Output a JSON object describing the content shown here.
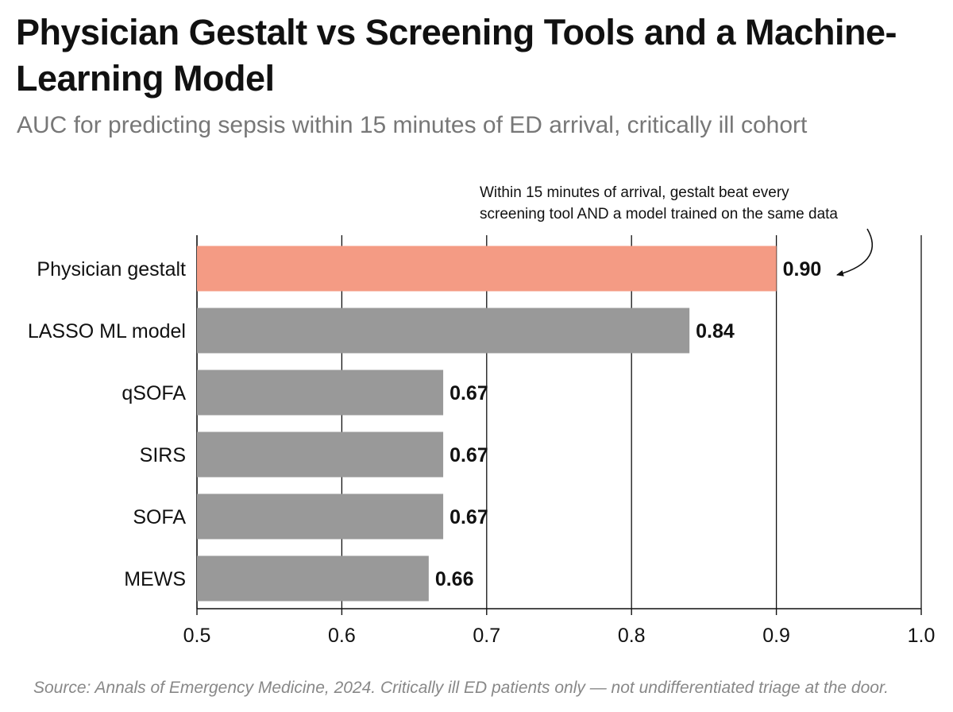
{
  "header": {
    "title": "Physician Gestalt vs Screening Tools and a Machine-Learning Model",
    "subtitle": "AUC for predicting sepsis within 15 minutes of ED arrival, critically ill cohort"
  },
  "footer": {
    "source": "Source: Annals of Emergency Medicine, 2024. Critically ill ED patients only — not undifferentiated triage at the door."
  },
  "chart_data": {
    "type": "bar",
    "orientation": "horizontal",
    "title": "Physician Gestalt vs Screening Tools and a Machine-Learning Model",
    "subtitle": "AUC for predicting sepsis within 15 minutes of ED arrival, critically ill cohort",
    "xlabel": "",
    "ylabel": "",
    "categories": [
      "Physician gestalt",
      "LASSO ML model",
      "qSOFA",
      "SIRS",
      "SOFA",
      "MEWS"
    ],
    "values": [
      0.9,
      0.84,
      0.67,
      0.67,
      0.67,
      0.66
    ],
    "value_labels": [
      "0.90",
      "0.84",
      "0.67",
      "0.67",
      "0.67",
      "0.66"
    ],
    "xlim": [
      0.5,
      1.0
    ],
    "x_ticks": [
      0.5,
      0.6,
      0.7,
      0.8,
      0.9,
      1.0
    ],
    "x_tick_labels": [
      "0.5",
      "0.6",
      "0.7",
      "0.8",
      "0.9",
      "1.0"
    ],
    "grid": "vertical",
    "legend": "none",
    "colors": {
      "highlight": "#f49b84",
      "default": "#999999",
      "grid": "#111111"
    },
    "highlight_index": 0,
    "annotation": {
      "lines": [
        "Within 15 minutes of arrival, gestalt beat every",
        "screening tool AND a model trained on the same data"
      ],
      "target_category": "Physician gestalt"
    }
  }
}
